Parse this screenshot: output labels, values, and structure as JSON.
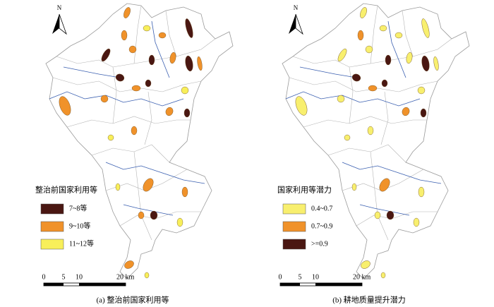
{
  "panels": [
    {
      "north": "N",
      "legend": {
        "title": "整治前国家利用等",
        "items": [
          {
            "label": "7~8等",
            "color": "#4a1712"
          },
          {
            "label": "9~10等",
            "color": "#f0922a"
          },
          {
            "label": "11~12等",
            "color": "#f8ef5a"
          }
        ]
      },
      "scale": [
        "0",
        "5",
        "10",
        "20 km"
      ],
      "caption": "(a) 整治前国家利用等"
    },
    {
      "north": "N",
      "legend": {
        "title": "国家利用等潜力",
        "items": [
          {
            "label": "0.4~0.7",
            "color": "#f8ef6e"
          },
          {
            "label": "0.7~0.9",
            "color": "#f0922a"
          },
          {
            "label": ">=0.9",
            "color": "#4a1712"
          }
        ]
      },
      "scale": [
        "0",
        "5",
        "10",
        "20 km"
      ],
      "caption": "(b) 耕地质量提升潜力"
    }
  ]
}
